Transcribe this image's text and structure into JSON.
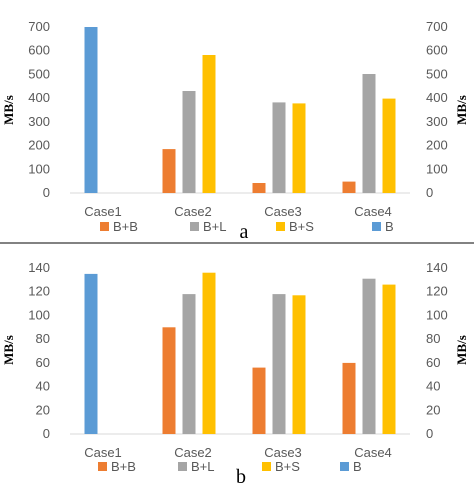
{
  "chart_data": [
    {
      "type": "bar",
      "panel_label": "a",
      "categories": [
        "Case1",
        "Case2",
        "Case3",
        "Case4"
      ],
      "series": [
        {
          "name": "B+B",
          "color": "#ED7D31",
          "values": [
            null,
            185,
            42,
            48
          ]
        },
        {
          "name": "B+L",
          "color": "#A5A5A5",
          "values": [
            null,
            430,
            382,
            502
          ]
        },
        {
          "name": "B+S",
          "color": "#FFC000",
          "values": [
            null,
            582,
            378,
            398
          ]
        },
        {
          "name": "B",
          "color": "#5B9BD5",
          "values": [
            700,
            null,
            null,
            null
          ]
        }
      ],
      "ylabel": "MB/s",
      "ylim": [
        0,
        700
      ],
      "yticks": [
        0,
        100,
        200,
        300,
        400,
        500,
        600,
        700
      ],
      "grid": false,
      "secondary_axis": true,
      "legend_position": "bottom"
    },
    {
      "type": "bar",
      "panel_label": "b",
      "categories": [
        "Case1",
        "Case2",
        "Case3",
        "Case4"
      ],
      "series": [
        {
          "name": "B+B",
          "color": "#ED7D31",
          "values": [
            null,
            90,
            56,
            60
          ]
        },
        {
          "name": "B+L",
          "color": "#A5A5A5",
          "values": [
            null,
            118,
            118,
            131
          ]
        },
        {
          "name": "B+S",
          "color": "#FFC000",
          "values": [
            null,
            136,
            117,
            126
          ]
        },
        {
          "name": "B",
          "color": "#5B9BD5",
          "values": [
            135,
            null,
            null,
            null
          ]
        }
      ],
      "ylabel": "MB/s",
      "ylim": [
        0,
        140
      ],
      "yticks": [
        0,
        20,
        40,
        60,
        80,
        100,
        120,
        140
      ],
      "grid": false,
      "secondary_axis": true,
      "legend_position": "bottom"
    }
  ],
  "divider_color": "#595959",
  "axis_color": "#D9D9D9"
}
